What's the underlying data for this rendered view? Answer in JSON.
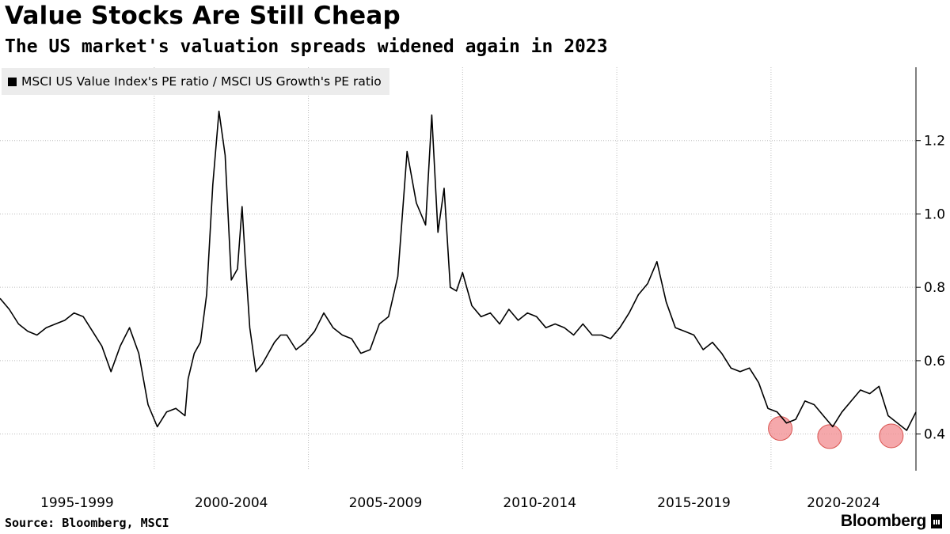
{
  "header": {
    "title": "Value Stocks Are Still Cheap",
    "subtitle": "The US market's valuation spreads widened again in 2023"
  },
  "footer": {
    "source": "Source: Bloomberg, MSCI",
    "brand": "Bloomberg"
  },
  "colors": {
    "line": "#000000",
    "highlight": "#f28b8f",
    "grid": "#bdbdbd",
    "legend_bg": "#ececec"
  },
  "chart_data": {
    "type": "line",
    "legend": [
      "MSCI US Value Index's PE ratio / MSCI US Growth's PE ratio"
    ],
    "legend_placement": "top-left",
    "x_tick_labels": [
      "1995-1999",
      "2000-2004",
      "2005-2009",
      "2010-2014",
      "2015-2019",
      "2020-2024"
    ],
    "x_range": [
      1995.0,
      2024.7
    ],
    "ylim": [
      0.3,
      1.4
    ],
    "y_ticks": [
      0.4,
      0.6,
      0.8,
      1.0,
      1.2
    ],
    "y_tick_labels": [
      "0.4",
      "0.6",
      "0.8",
      "1.0",
      "1.2"
    ],
    "grid": "horizontal dotted",
    "y_axis_position": "right",
    "series": [
      {
        "name": "MSCI US Value Index's PE ratio / MSCI US Growth's PE ratio",
        "x": [
          1995.0,
          1995.3,
          1995.6,
          1995.9,
          1996.2,
          1996.5,
          1996.8,
          1997.1,
          1997.4,
          1997.7,
          1998.0,
          1998.3,
          1998.6,
          1998.9,
          1999.2,
          1999.5,
          1999.8,
          2000.1,
          2000.4,
          2000.7,
          2001.0,
          2001.1,
          2001.3,
          2001.5,
          2001.7,
          2001.9,
          2002.1,
          2002.3,
          2002.5,
          2002.7,
          2002.85,
          2002.95,
          2003.1,
          2003.3,
          2003.5,
          2003.7,
          2003.9,
          2004.1,
          2004.3,
          2004.6,
          2004.9,
          2005.2,
          2005.5,
          2005.8,
          2006.1,
          2006.4,
          2006.7,
          2007.0,
          2007.3,
          2007.6,
          2007.9,
          2008.2,
          2008.5,
          2008.8,
          2009.0,
          2009.2,
          2009.4,
          2009.6,
          2009.8,
          2010.0,
          2010.3,
          2010.6,
          2010.9,
          2011.2,
          2011.5,
          2011.8,
          2012.1,
          2012.4,
          2012.7,
          2013.0,
          2013.3,
          2013.6,
          2013.9,
          2014.2,
          2014.5,
          2014.8,
          2015.1,
          2015.4,
          2015.7,
          2016.0,
          2016.3,
          2016.6,
          2016.9,
          2017.2,
          2017.5,
          2017.8,
          2018.1,
          2018.4,
          2018.7,
          2019.0,
          2019.3,
          2019.6,
          2019.9,
          2020.2,
          2020.5,
          2020.8,
          2021.1,
          2021.4,
          2021.7,
          2022.0,
          2022.3,
          2022.6,
          2022.9,
          2023.2,
          2023.5,
          2023.8,
          2024.1,
          2024.4,
          2024.7
        ],
        "values": [
          0.77,
          0.74,
          0.7,
          0.68,
          0.67,
          0.69,
          0.7,
          0.71,
          0.73,
          0.72,
          0.68,
          0.64,
          0.57,
          0.64,
          0.69,
          0.62,
          0.48,
          0.42,
          0.46,
          0.47,
          0.45,
          0.55,
          0.62,
          0.65,
          0.78,
          1.08,
          1.28,
          1.16,
          0.82,
          0.85,
          1.02,
          0.88,
          0.69,
          0.57,
          0.59,
          0.62,
          0.65,
          0.67,
          0.67,
          0.63,
          0.65,
          0.68,
          0.73,
          0.69,
          0.67,
          0.66,
          0.62,
          0.63,
          0.7,
          0.72,
          0.83,
          1.17,
          1.03,
          0.97,
          1.27,
          0.95,
          1.07,
          0.8,
          0.79,
          0.84,
          0.75,
          0.72,
          0.73,
          0.7,
          0.74,
          0.71,
          0.73,
          0.72,
          0.69,
          0.7,
          0.69,
          0.67,
          0.7,
          0.67,
          0.67,
          0.66,
          0.69,
          0.73,
          0.78,
          0.81,
          0.87,
          0.76,
          0.69,
          0.68,
          0.67,
          0.63,
          0.65,
          0.62,
          0.58,
          0.57,
          0.58,
          0.54,
          0.47,
          0.46,
          0.43,
          0.44,
          0.49,
          0.48,
          0.45,
          0.42,
          0.46,
          0.49,
          0.52,
          0.51,
          0.53,
          0.45,
          0.43,
          0.41,
          0.46
        ]
      }
    ],
    "highlights": [
      {
        "x": 2020.3,
        "y": 0.415
      },
      {
        "x": 2021.9,
        "y": 0.393
      },
      {
        "x": 2023.9,
        "y": 0.395
      }
    ]
  }
}
